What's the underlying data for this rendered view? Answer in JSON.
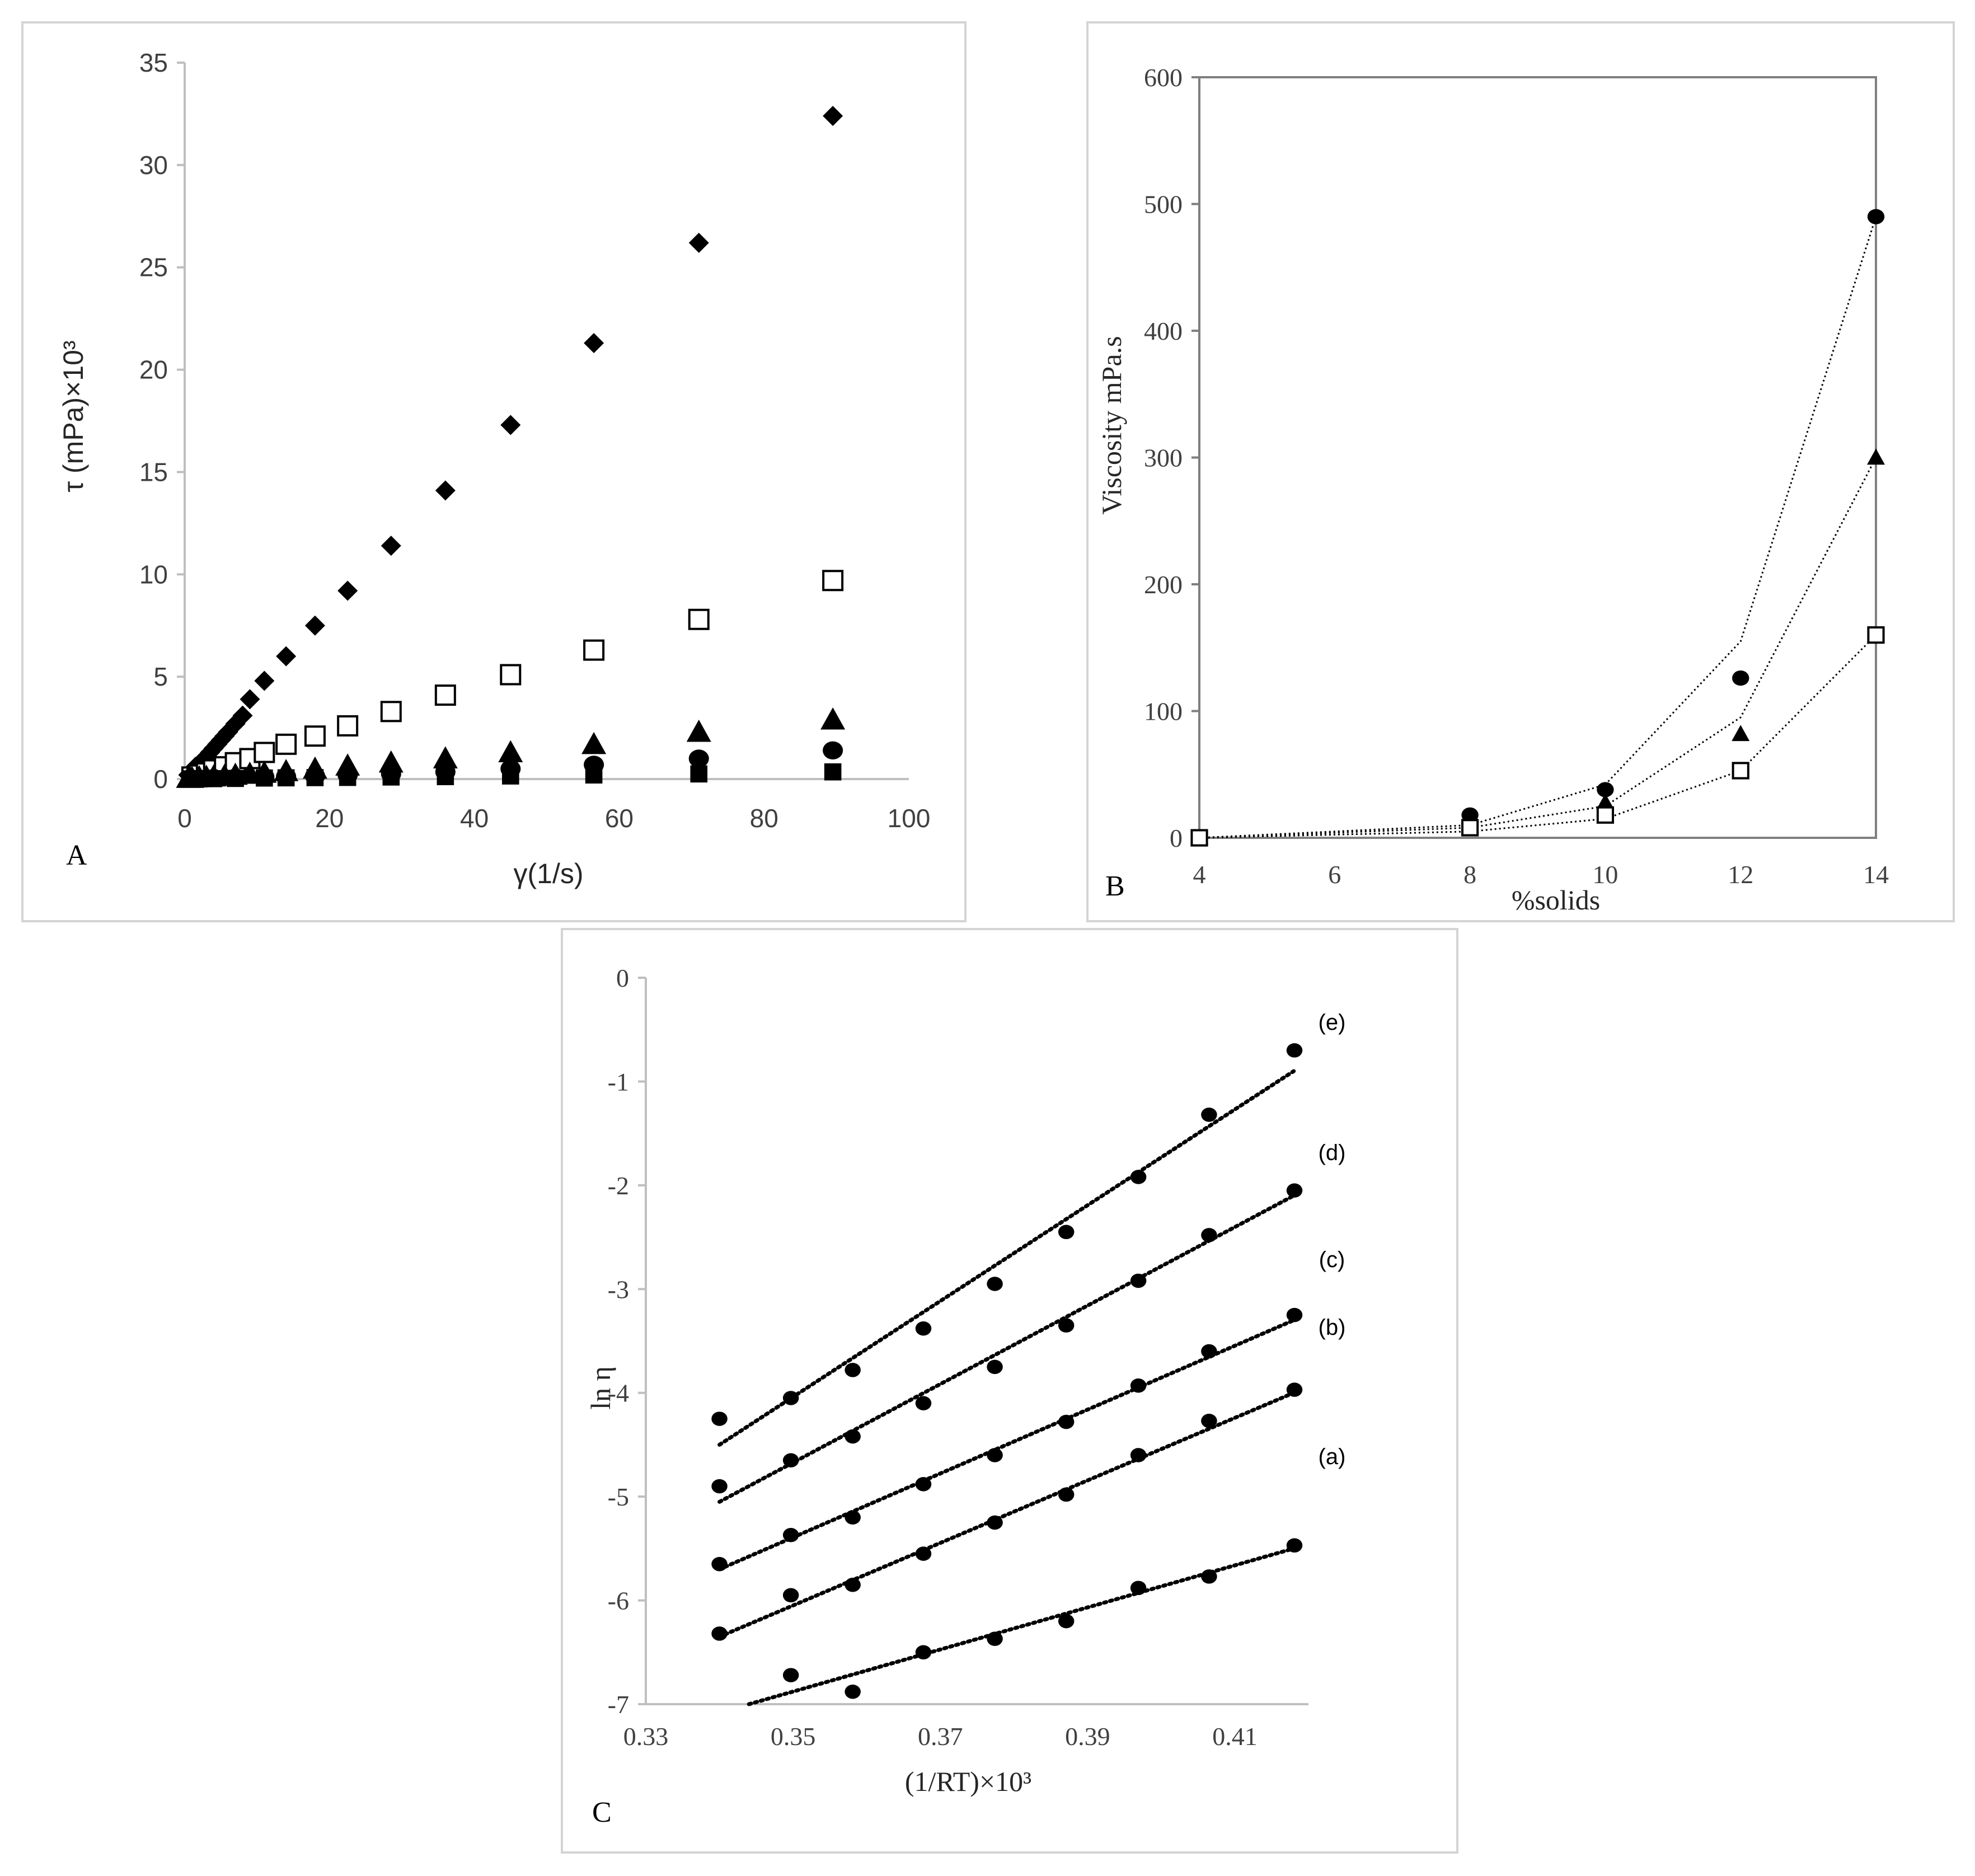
{
  "chart_data": [
    {
      "type": "scatter",
      "panel_label": "A",
      "xlabel": "γ(1/s)",
      "ylabel": "τ (mPa)×10³",
      "xlim": [
        0,
        100
      ],
      "ylim": [
        0,
        35
      ],
      "xticks": [
        0,
        20,
        40,
        60,
        80,
        100
      ],
      "yticks": [
        0,
        5,
        10,
        15,
        20,
        25,
        30,
        35
      ],
      "grid": false,
      "series": [
        {
          "marker": "diamond-filled",
          "x": [
            0.5,
            1,
            1.5,
            2,
            2.5,
            3,
            3.5,
            4,
            4.5,
            5,
            5.5,
            6,
            7,
            8,
            9,
            11,
            14,
            18,
            22.5,
            28.5,
            36,
            45,
            56.5,
            71,
            89.5
          ],
          "y": [
            0.2,
            0.4,
            0.6,
            0.75,
            0.9,
            1.1,
            1.3,
            1.5,
            1.7,
            1.9,
            2.1,
            2.3,
            2.7,
            3.1,
            3.9,
            4.8,
            6.0,
            7.5,
            9.2,
            11.4,
            14.1,
            17.3,
            21.3,
            26.2,
            32.4
          ]
        },
        {
          "marker": "square-open",
          "x": [
            1,
            2,
            3,
            4,
            5.5,
            7,
            9,
            11,
            14,
            18,
            22.5,
            28.5,
            36,
            45,
            56.5,
            71,
            89.5
          ],
          "y": [
            0.1,
            0.2,
            0.3,
            0.45,
            0.6,
            0.8,
            1.0,
            1.3,
            1.7,
            2.1,
            2.6,
            3.3,
            4.1,
            5.1,
            6.3,
            7.8,
            9.7
          ]
        },
        {
          "marker": "triangle-filled",
          "x": [
            0.5,
            1,
            2,
            3,
            4,
            5.5,
            7,
            9,
            11,
            14,
            18,
            22.5,
            28.5,
            36,
            45,
            56.5,
            71,
            89.5
          ],
          "y": [
            0.05,
            0.05,
            0.08,
            0.1,
            0.12,
            0.15,
            0.2,
            0.25,
            0.3,
            0.38,
            0.5,
            0.65,
            0.8,
            1.0,
            1.3,
            1.7,
            2.3,
            2.9
          ]
        },
        {
          "marker": "circle-filled",
          "x": [
            1,
            2,
            4,
            7,
            11,
            14,
            18,
            22.5,
            28.5,
            36,
            45,
            56.5,
            71,
            89.5
          ],
          "y": [
            0.02,
            0.03,
            0.05,
            0.07,
            0.1,
            0.12,
            0.15,
            0.2,
            0.25,
            0.35,
            0.5,
            0.7,
            1.0,
            1.4
          ]
        },
        {
          "marker": "square-filled",
          "x": [
            1,
            2,
            4,
            7,
            11,
            14,
            18,
            22.5,
            28.5,
            36,
            45,
            56.5,
            71,
            89.5
          ],
          "y": [
            0.01,
            0.01,
            0.02,
            0.03,
            0.05,
            0.06,
            0.07,
            0.08,
            0.1,
            0.12,
            0.15,
            0.2,
            0.25,
            0.35
          ]
        }
      ]
    },
    {
      "type": "line",
      "panel_label": "B",
      "xlabel": "%solids",
      "ylabel": "Viscosity mPa.s",
      "xlim": [
        4,
        14
      ],
      "ylim": [
        0,
        600
      ],
      "xticks": [
        4,
        6,
        8,
        10,
        12,
        14
      ],
      "yticks": [
        0,
        100,
        200,
        300,
        400,
        500,
        600
      ],
      "grid": false,
      "series": [
        {
          "marker": "circle-filled",
          "x": [
            4,
            8,
            10,
            12,
            14
          ],
          "y": [
            0,
            18,
            38,
            126,
            490
          ],
          "line_x": [
            4,
            8,
            10,
            12,
            14
          ],
          "line_y": [
            0,
            10,
            42,
            155,
            490
          ]
        },
        {
          "marker": "triangle-filled",
          "x": [
            4,
            8,
            10,
            12,
            14
          ],
          "y": [
            0,
            10,
            28,
            82,
            300
          ],
          "line_x": [
            4,
            8,
            10,
            12,
            14
          ],
          "line_y": [
            0,
            8,
            25,
            95,
            300
          ]
        },
        {
          "marker": "square-open",
          "x": [
            4,
            8,
            10,
            12,
            14
          ],
          "y": [
            0,
            8,
            18,
            53,
            160
          ],
          "line_x": [
            4,
            8,
            10,
            12,
            14
          ],
          "line_y": [
            0,
            5,
            15,
            53,
            160
          ]
        }
      ]
    },
    {
      "type": "scatter",
      "panel_label": "C",
      "xlabel": "(1/RT)×10³",
      "ylabel": "ln η",
      "xlim": [
        0.33,
        0.42
      ],
      "ylim": [
        -7,
        0
      ],
      "xticks": [
        0.33,
        0.35,
        0.37,
        0.39,
        0.41
      ],
      "yticks": [
        0,
        -1,
        -2,
        -3,
        -4,
        -5,
        -6,
        -7
      ],
      "grid": false,
      "series": [
        {
          "name": "(e)",
          "x": [
            0.34,
            0.3497,
            0.3581,
            0.3677,
            0.3774,
            0.3871,
            0.3969,
            0.4065,
            0.4181
          ],
          "y": [
            -4.25,
            -4.05,
            -3.78,
            -3.38,
            -2.95,
            -2.45,
            -1.92,
            -1.32,
            -0.7
          ],
          "fit": [
            [
              0.34,
              -4.5
            ],
            [
              0.418,
              -0.9
            ]
          ]
        },
        {
          "name": "(d)",
          "x": [
            0.34,
            0.3497,
            0.3581,
            0.3677,
            0.3774,
            0.3871,
            0.3969,
            0.4065,
            0.4181
          ],
          "y": [
            -4.9,
            -4.65,
            -4.42,
            -4.1,
            -3.75,
            -3.35,
            -2.92,
            -2.48,
            -2.05
          ],
          "fit": [
            [
              0.34,
              -5.05
            ],
            [
              0.418,
              -2.1
            ]
          ]
        },
        {
          "name": "(c)",
          "x": [
            0.34,
            0.3497,
            0.3581,
            0.3677,
            0.3774,
            0.3871,
            0.3969,
            0.4065,
            0.4181
          ],
          "y": [
            -5.65,
            -5.37,
            -5.2,
            -4.88,
            -4.6,
            -4.28,
            -3.93,
            -3.6,
            -3.25
          ],
          "fit": [
            [
              0.34,
              -5.7
            ],
            [
              0.418,
              -3.3
            ]
          ]
        },
        {
          "name": "(b)",
          "x": [
            0.34,
            0.3497,
            0.3581,
            0.3677,
            0.3774,
            0.3871,
            0.3969,
            0.4065,
            0.4181
          ],
          "y": [
            -6.32,
            -5.95,
            -5.85,
            -5.55,
            -5.25,
            -4.98,
            -4.6,
            -4.27,
            -3.97
          ],
          "fit": [
            [
              0.34,
              -6.35
            ],
            [
              0.418,
              -4.0
            ]
          ]
        },
        {
          "name": "(a)",
          "x": [
            0.3497,
            0.3581,
            0.3677,
            0.3774,
            0.3871,
            0.3969,
            0.4065,
            0.4181
          ],
          "y": [
            -6.72,
            -6.88,
            -6.5,
            -6.37,
            -6.2,
            -5.88,
            -5.77,
            -5.47
          ],
          "fit": [
            [
              0.344,
              -7.0
            ],
            [
              0.418,
              -5.5
            ]
          ]
        }
      ]
    }
  ]
}
